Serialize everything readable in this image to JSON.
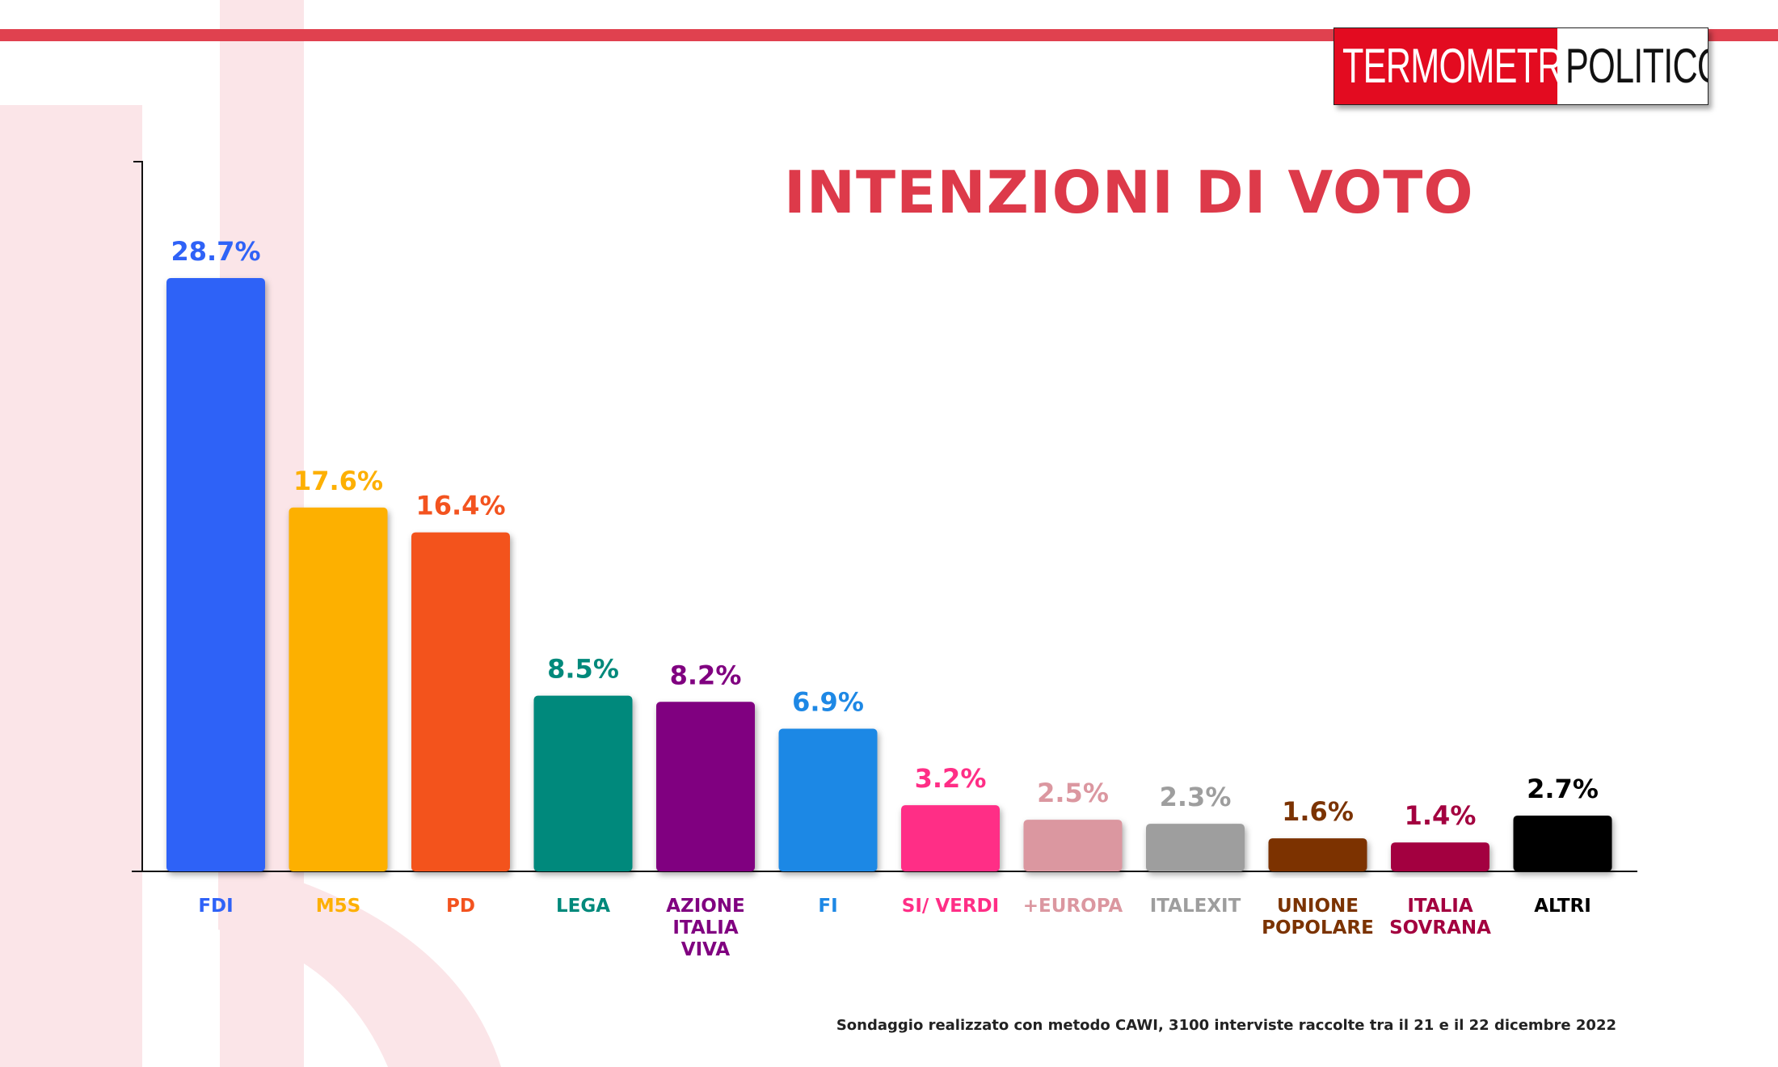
{
  "brand": {
    "part1": "TERMOMETRO",
    "part2": "POLITICO"
  },
  "footnote": "Sondaggio realizzato con metodo CAWI, 3100 interviste raccolte tra il 21 e il 22 dicembre 2022",
  "chart_data": {
    "type": "bar",
    "title": "INTENZIONI DI VOTO",
    "xlabel": "",
    "ylabel": "",
    "ylim": [
      0,
      28.7
    ],
    "grid": false,
    "legend": "none",
    "categories": [
      [
        "FDI"
      ],
      [
        "M5S"
      ],
      [
        "PD"
      ],
      [
        "LEGA"
      ],
      [
        "AZIONE",
        "ITALIA",
        "VIVA"
      ],
      [
        "FI"
      ],
      [
        "SI/ VERDI"
      ],
      [
        "+EUROPA"
      ],
      [
        "ITALEXIT"
      ],
      [
        "UNIONE",
        "POPOLARE"
      ],
      [
        "ITALIA",
        "SOVRANA"
      ],
      [
        "ALTRI"
      ]
    ],
    "values": [
      28.7,
      17.6,
      16.4,
      8.5,
      8.2,
      6.9,
      3.2,
      2.5,
      2.3,
      1.6,
      1.4,
      2.7
    ],
    "value_labels": [
      "28.7%",
      "17.6%",
      "16.4%",
      "8.5%",
      "8.2%",
      "6.9%",
      "3.2%",
      "2.5%",
      "2.3%",
      "1.6%",
      "1.4%",
      "2.7%"
    ],
    "colors": [
      "#2f62f7",
      "#fdb003",
      "#f3531f",
      "#00897b",
      "#800080",
      "#1e88e5",
      "#ff2e86",
      "#db97a0",
      "#9e9e9e",
      "#7b3302",
      "#a3003f",
      "#000000"
    ]
  }
}
